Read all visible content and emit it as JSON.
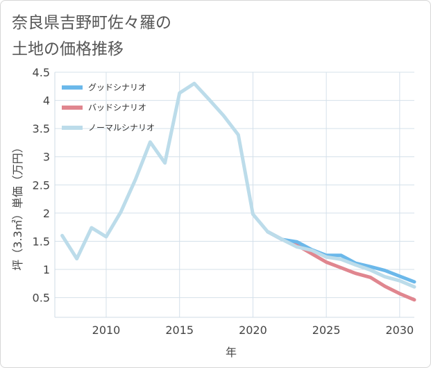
{
  "chart_data": {
    "type": "line",
    "title_lines": [
      "奈良県吉野町佐々羅の",
      "土地の価格推移"
    ],
    "xlabel": "年",
    "ylabel": "坪（3.3㎡）単価（万円）",
    "xlim": [
      2006.5,
      2031
    ],
    "ylim": [
      0.15,
      4.5
    ],
    "x_ticks": [
      2010,
      2015,
      2020,
      2025,
      2030
    ],
    "y_ticks": [
      0.5,
      1,
      1.5,
      2,
      2.5,
      3,
      3.5,
      4,
      4.5
    ],
    "y_tick_labels": [
      "0.5",
      "1",
      "1.5",
      "2",
      "2.5",
      "3",
      "3.5",
      "4",
      "4.5"
    ],
    "grid": true,
    "legend_position": "top-left",
    "series": [
      {
        "name": "グッドシナリオ",
        "color": "#6bb8ea",
        "x": [
          2021,
          2022,
          2023,
          2024,
          2025,
          2026,
          2027,
          2028,
          2029,
          2030,
          2031
        ],
        "y": [
          1.67,
          1.53,
          1.49,
          1.35,
          1.25,
          1.25,
          1.11,
          1.05,
          0.98,
          0.88,
          0.78
        ]
      },
      {
        "name": "バッドシナリオ",
        "color": "#e0868f",
        "x": [
          2021,
          2022,
          2023,
          2024,
          2025,
          2026,
          2027,
          2028,
          2029,
          2030,
          2031
        ],
        "y": [
          1.67,
          1.53,
          1.43,
          1.28,
          1.13,
          1.03,
          0.93,
          0.86,
          0.7,
          0.57,
          0.46
        ]
      },
      {
        "name": "ノーマルシナリオ",
        "color": "#bcdcea",
        "x": [
          2007,
          2008,
          2009,
          2010,
          2011,
          2012,
          2013,
          2014,
          2015,
          2016,
          2017,
          2018,
          2019,
          2020,
          2021,
          2022,
          2023,
          2024,
          2025,
          2026,
          2027,
          2028,
          2029,
          2030,
          2031
        ],
        "y": [
          1.6,
          1.19,
          1.74,
          1.58,
          2.02,
          2.6,
          3.26,
          2.89,
          4.13,
          4.3,
          4.02,
          3.73,
          3.39,
          1.98,
          1.67,
          1.53,
          1.4,
          1.34,
          1.22,
          1.18,
          1.08,
          0.99,
          0.87,
          0.8,
          0.69
        ]
      }
    ]
  }
}
